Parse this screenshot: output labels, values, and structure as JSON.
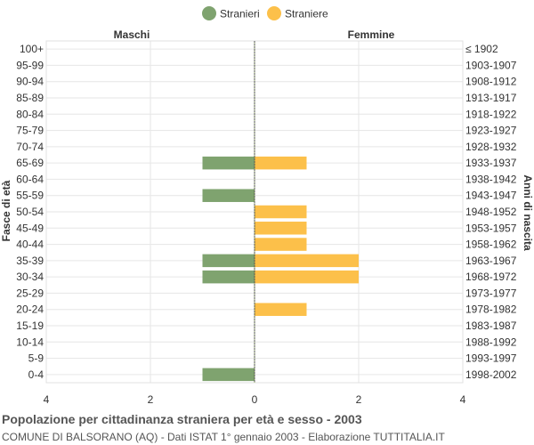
{
  "chart_data": {
    "type": "bar",
    "orientation": "horizontal",
    "categories": [
      "100+",
      "95-99",
      "90-94",
      "85-89",
      "80-84",
      "75-79",
      "70-74",
      "65-69",
      "60-64",
      "55-59",
      "50-54",
      "45-49",
      "40-44",
      "35-39",
      "30-34",
      "25-29",
      "20-24",
      "15-19",
      "10-14",
      "5-9",
      "0-4"
    ],
    "birth_years": [
      "≤ 1902",
      "1903-1907",
      "1908-1912",
      "1913-1917",
      "1918-1922",
      "1923-1927",
      "1928-1932",
      "1933-1937",
      "1938-1942",
      "1943-1947",
      "1948-1952",
      "1953-1957",
      "1958-1962",
      "1963-1967",
      "1968-1972",
      "1973-1977",
      "1978-1982",
      "1983-1987",
      "1988-1992",
      "1993-1997",
      "1998-2002"
    ],
    "series": [
      {
        "name": "Stranieri",
        "side": "Maschi",
        "color": "#7fa36f",
        "values": [
          0,
          0,
          0,
          0,
          0,
          0,
          0,
          1,
          0,
          1,
          0,
          0,
          0,
          1,
          1,
          0,
          0,
          0,
          0,
          0,
          1
        ]
      },
      {
        "name": "Straniere",
        "side": "Femmine",
        "color": "#fcc04a",
        "values": [
          0,
          0,
          0,
          0,
          0,
          0,
          0,
          1,
          0,
          0,
          1,
          1,
          1,
          2,
          2,
          0,
          1,
          0,
          0,
          0,
          0
        ]
      }
    ],
    "xlim": [
      -4,
      4
    ],
    "x_ticks": [
      -4,
      -2,
      0,
      2,
      4
    ],
    "x_tick_labels": [
      "4",
      "2",
      "0",
      "2",
      "4"
    ],
    "left_header": "Maschi",
    "right_header": "Femmine",
    "ylabel_left": "Fasce di età",
    "ylabel_right": "Anni di nascita",
    "grid": true,
    "legend_position": "top-center"
  },
  "footer": {
    "title": "Popolazione per cittadinanza straniera per età e sesso - 2003",
    "subtitle": "COMUNE DI BALSORANO (AQ) - Dati ISTAT 1° gennaio 2003 - Elaborazione TUTTITALIA.IT"
  }
}
